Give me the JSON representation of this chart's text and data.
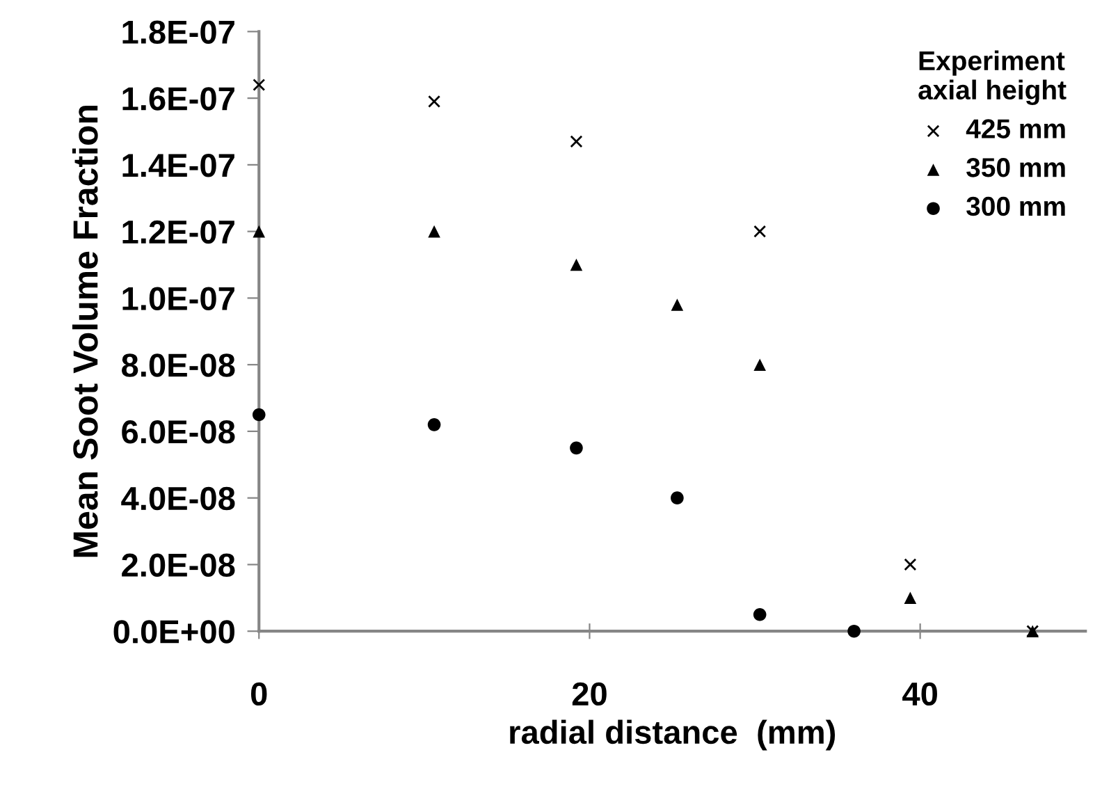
{
  "chart_data": {
    "type": "scatter",
    "xlabel": "radial distance  (mm)",
    "ylabel": "Mean Soot Volume Fraction",
    "legend_title": "Experiment\naxial height",
    "series": [
      {
        "name": "425 mm",
        "color": "#000000",
        "marker": "cross",
        "x": [
          0,
          10.6,
          19.2,
          30.3,
          39.4,
          46.8
        ],
        "values": [
          1.64e-07,
          1.59e-07,
          1.47e-07,
          1.2e-07,
          2e-08,
          0
        ]
      },
      {
        "name": "350 mm",
        "color": "#000000",
        "marker": "triangle",
        "x": [
          0,
          10.6,
          19.2,
          25.3,
          30.3,
          39.4,
          46.8
        ],
        "values": [
          1.2e-07,
          1.2e-07,
          1.1e-07,
          9.8e-08,
          8e-08,
          1e-08,
          0
        ]
      },
      {
        "name": "300 mm",
        "color": "#000000",
        "marker": "circle",
        "x": [
          0,
          10.6,
          19.2,
          25.3,
          30.3,
          36.0
        ],
        "values": [
          6.5e-08,
          6.2e-08,
          5.5e-08,
          4e-08,
          5e-09,
          0
        ]
      }
    ],
    "xlim": [
      0,
      50
    ],
    "xticks": [
      0,
      20,
      40
    ],
    "ylim": [
      0,
      1.8e-07
    ],
    "yticks": [
      {
        "value": 0,
        "label": "0.0E+00"
      },
      {
        "value": 2e-08,
        "label": "2.0E-08"
      },
      {
        "value": 4e-08,
        "label": "4.0E-08"
      },
      {
        "value": 6e-08,
        "label": "6.0E-08"
      },
      {
        "value": 8e-08,
        "label": "8.0E-08"
      },
      {
        "value": 1e-07,
        "label": "1.0E-07"
      },
      {
        "value": 1.2e-07,
        "label": "1.2E-07"
      },
      {
        "value": 1.4e-07,
        "label": "1.4E-07"
      },
      {
        "value": 1.6e-07,
        "label": "1.6E-07"
      },
      {
        "value": 1.8e-07,
        "label": "1.8E-07"
      }
    ],
    "grid": false,
    "legend": "top right"
  }
}
